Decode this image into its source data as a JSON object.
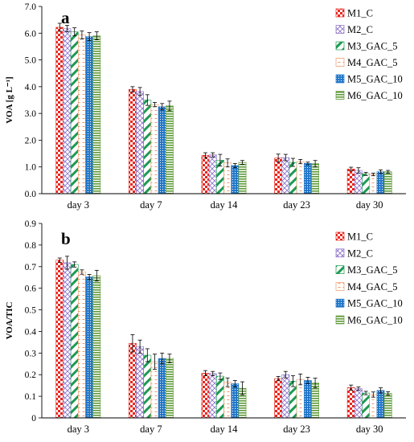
{
  "series_styles": [
    {
      "name": "M1_C",
      "pattern": "checker",
      "color": "#e8261d"
    },
    {
      "name": "M2_C",
      "pattern": "diagcross",
      "color": "#8a6fc9"
    },
    {
      "name": "M3_GAC_5",
      "pattern": "bigdiag",
      "color": "#1d9a52"
    },
    {
      "name": "M4_GAC_5",
      "pattern": "dashes",
      "color": "#ef9a6a"
    },
    {
      "name": "M5_GAC_10",
      "pattern": "dots",
      "color": "#2176c7"
    },
    {
      "name": "M6_GAC_10",
      "pattern": "hlines",
      "color": "#5f9a3a"
    }
  ],
  "chart_data": [
    {
      "type": "bar",
      "panel_label": "a",
      "ylabel": "VOA [g L⁻¹]",
      "ylim": [
        0,
        7
      ],
      "yticks": [
        "0.0",
        "1.0",
        "2.0",
        "3.0",
        "4.0",
        "5.0",
        "6.0",
        "7.0"
      ],
      "categories": [
        "day 3",
        "day 7",
        "day 14",
        "day 23",
        "day 30"
      ],
      "legend_position": "top-right",
      "error_bars": true,
      "series": [
        {
          "name": "M1_C",
          "values": [
            6.22,
            3.9,
            1.43,
            1.33,
            0.92
          ],
          "errors": [
            0.15,
            0.1,
            0.1,
            0.15,
            0.07
          ]
        },
        {
          "name": "M2_C",
          "values": [
            6.17,
            3.82,
            1.45,
            1.35,
            0.87
          ],
          "errors": [
            0.12,
            0.15,
            0.08,
            0.12,
            0.1
          ]
        },
        {
          "name": "M3_GAC_5",
          "values": [
            6.05,
            3.5,
            1.25,
            1.17,
            0.74
          ],
          "errors": [
            0.15,
            0.2,
            0.22,
            0.15,
            0.06
          ]
        },
        {
          "name": "M4_GAC_5",
          "values": [
            5.93,
            3.33,
            1.15,
            1.2,
            0.72
          ],
          "errors": [
            0.15,
            0.08,
            0.15,
            0.08,
            0.05
          ]
        },
        {
          "name": "M5_GAC_10",
          "values": [
            5.87,
            3.25,
            1.05,
            1.13,
            0.82
          ],
          "errors": [
            0.15,
            0.12,
            0.08,
            0.05,
            0.07
          ]
        },
        {
          "name": "M6_GAC_10",
          "values": [
            5.9,
            3.28,
            1.17,
            1.12,
            0.82
          ],
          "errors": [
            0.15,
            0.18,
            0.07,
            0.12,
            0.05
          ]
        }
      ]
    },
    {
      "type": "bar",
      "panel_label": "b",
      "ylabel": "VOA/TIC",
      "ylim": [
        0,
        0.9
      ],
      "yticks": [
        "0",
        "0.1",
        "0.2",
        "0.3",
        "0.4",
        "0.5",
        "0.6",
        "0.7",
        "0.8",
        "0.9"
      ],
      "categories": [
        "day 3",
        "day 7",
        "day 14",
        "day 23",
        "day 30"
      ],
      "legend_position": "top-right",
      "error_bars": true,
      "series": [
        {
          "name": "M1_C",
          "values": [
            0.73,
            0.345,
            0.207,
            0.182,
            0.14
          ],
          "errors": [
            0.01,
            0.04,
            0.012,
            0.01,
            0.012
          ]
        },
        {
          "name": "M2_C",
          "values": [
            0.718,
            0.33,
            0.205,
            0.2,
            0.135
          ],
          "errors": [
            0.03,
            0.03,
            0.01,
            0.015,
            0.008
          ]
        },
        {
          "name": "M3_GAC_5",
          "values": [
            0.71,
            0.29,
            0.193,
            0.17,
            0.115
          ],
          "errors": [
            0.012,
            0.03,
            0.015,
            0.025,
            0.008
          ]
        },
        {
          "name": "M4_GAC_5",
          "values": [
            0.675,
            0.26,
            0.165,
            0.178,
            0.108
          ],
          "errors": [
            0.01,
            0.035,
            0.02,
            0.025,
            0.012
          ]
        },
        {
          "name": "M5_GAC_10",
          "values": [
            0.652,
            0.275,
            0.158,
            0.173,
            0.127
          ],
          "errors": [
            0.012,
            0.025,
            0.015,
            0.015,
            0.012
          ]
        },
        {
          "name": "M6_GAC_10",
          "values": [
            0.658,
            0.275,
            0.137,
            0.162,
            0.113
          ],
          "errors": [
            0.025,
            0.02,
            0.03,
            0.022,
            0.008
          ]
        }
      ]
    }
  ]
}
